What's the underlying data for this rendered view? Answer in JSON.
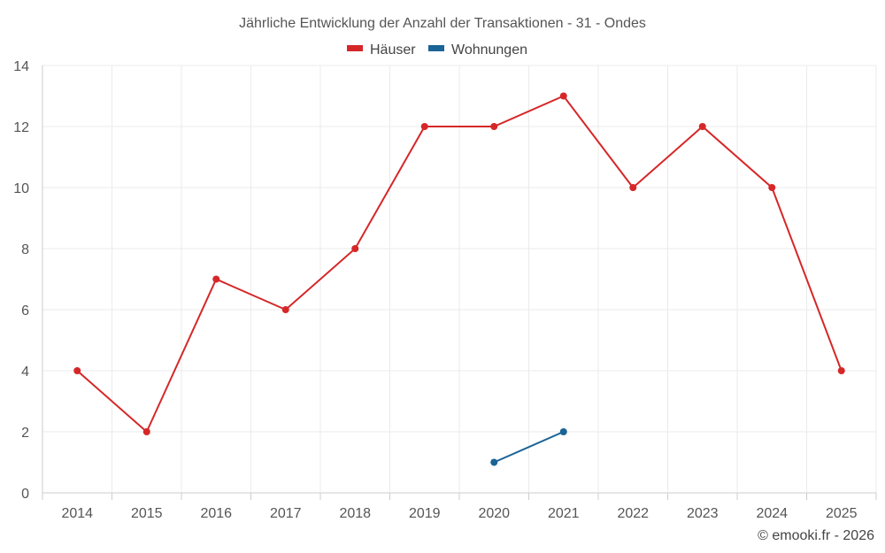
{
  "chart_data": {
    "type": "line",
    "title": "Jährliche Entwicklung der Anzahl der Transaktionen - 31 - Ondes",
    "categories": [
      "2014",
      "2015",
      "2016",
      "2017",
      "2018",
      "2019",
      "2020",
      "2021",
      "2022",
      "2023",
      "2024",
      "2025"
    ],
    "ylim": [
      0,
      14
    ],
    "yticks": [
      0,
      2,
      4,
      6,
      8,
      10,
      12,
      14
    ],
    "grid": true,
    "legend_position": "top-center",
    "series": [
      {
        "name": "Häuser",
        "color": "#d62728",
        "values": [
          4,
          2,
          7,
          6,
          8,
          12,
          12,
          13,
          10,
          12,
          10,
          4
        ]
      },
      {
        "name": "Wohnungen",
        "color": "#1a6496",
        "values": [
          null,
          null,
          null,
          null,
          null,
          null,
          1,
          2,
          null,
          null,
          null,
          null
        ]
      }
    ],
    "credit": "© emooki.fr - 2026"
  }
}
